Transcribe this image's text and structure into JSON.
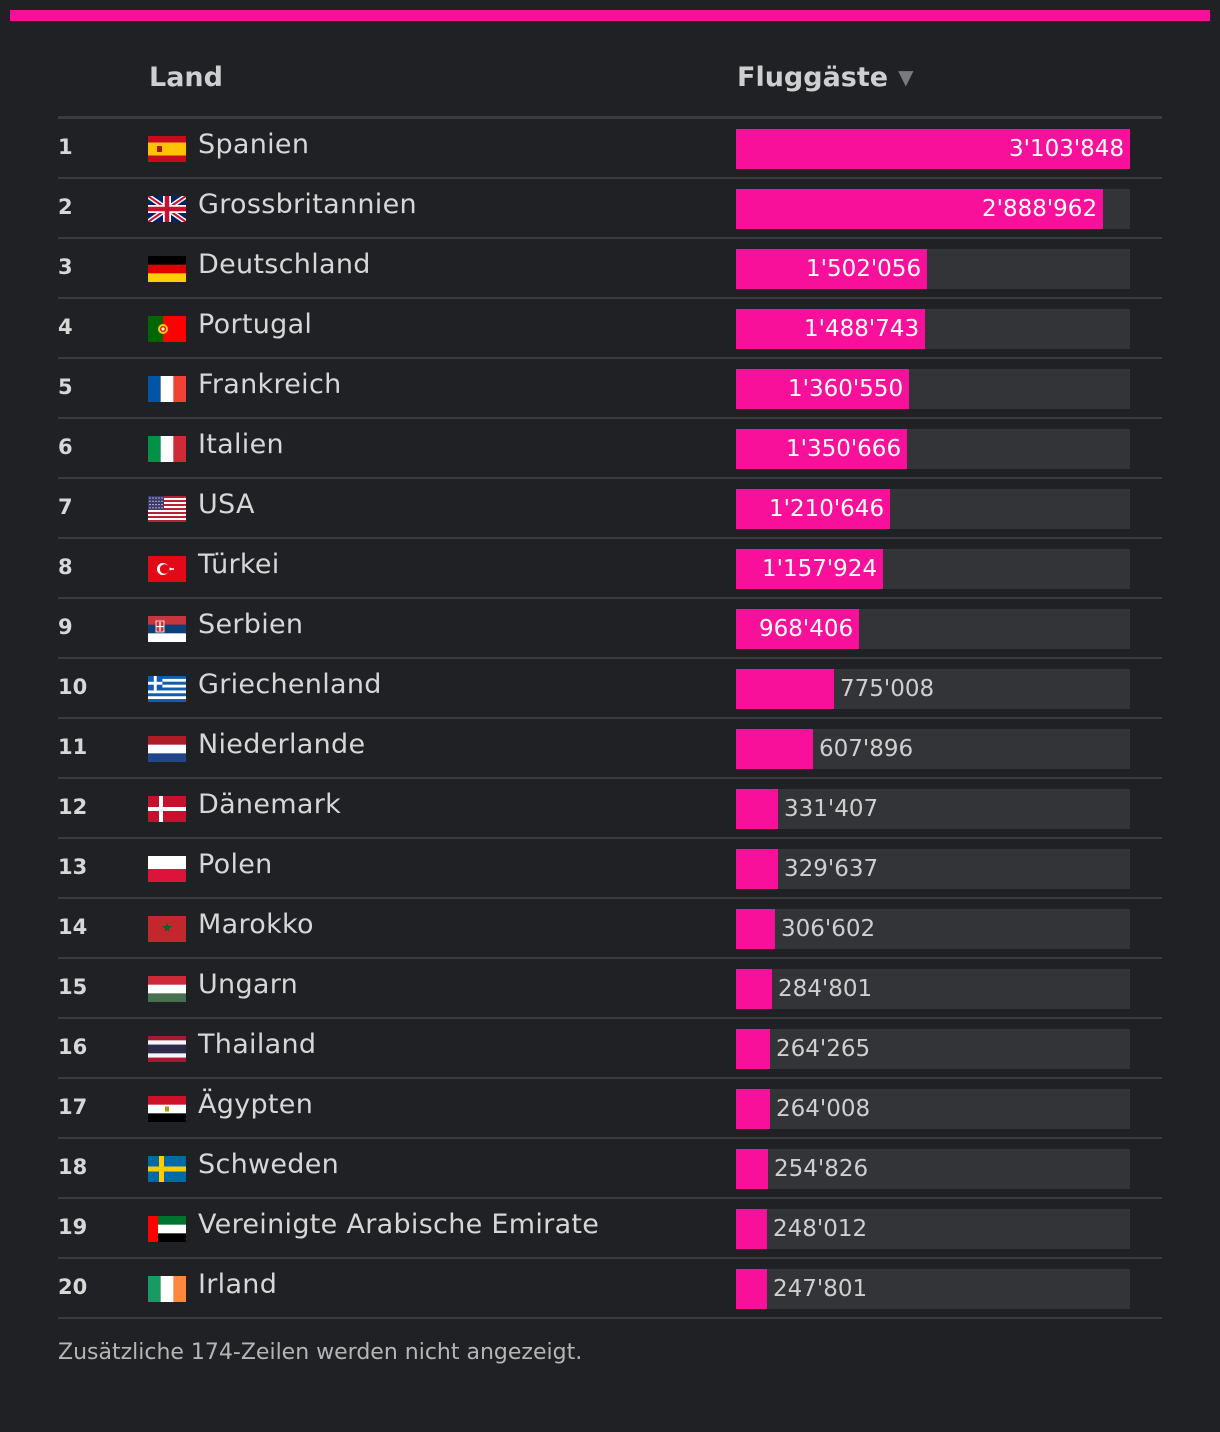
{
  "accent_color": "#f80f9a",
  "header": {
    "land_label": "Land",
    "value_label": "Fluggäste",
    "sort_icon": "triangle-down-icon",
    "sort_glyph": "▼"
  },
  "chart_data": {
    "type": "bar",
    "orientation": "horizontal",
    "xlim": [
      0,
      3103848
    ],
    "columns": [
      "Land",
      "Fluggäste"
    ],
    "rows": [
      {
        "rank": "1",
        "country": "Spanien",
        "flag": "es",
        "value": 3103848,
        "label": "3'103'848"
      },
      {
        "rank": "2",
        "country": "Grossbritannien",
        "flag": "gb",
        "value": 2888962,
        "label": "2'888'962"
      },
      {
        "rank": "3",
        "country": "Deutschland",
        "flag": "de",
        "value": 1502056,
        "label": "1'502'056"
      },
      {
        "rank": "4",
        "country": "Portugal",
        "flag": "pt",
        "value": 1488743,
        "label": "1'488'743"
      },
      {
        "rank": "5",
        "country": "Frankreich",
        "flag": "fr",
        "value": 1360550,
        "label": "1'360'550"
      },
      {
        "rank": "6",
        "country": "Italien",
        "flag": "it",
        "value": 1350666,
        "label": "1'350'666"
      },
      {
        "rank": "7",
        "country": "USA",
        "flag": "us",
        "value": 1210646,
        "label": "1'210'646"
      },
      {
        "rank": "8",
        "country": "Türkei",
        "flag": "tr",
        "value": 1157924,
        "label": "1'157'924"
      },
      {
        "rank": "9",
        "country": "Serbien",
        "flag": "rs",
        "value": 968406,
        "label": "968'406"
      },
      {
        "rank": "10",
        "country": "Griechenland",
        "flag": "gr",
        "value": 775008,
        "label": "775'008"
      },
      {
        "rank": "11",
        "country": "Niederlande",
        "flag": "nl",
        "value": 607896,
        "label": "607'896"
      },
      {
        "rank": "12",
        "country": "Dänemark",
        "flag": "dk",
        "value": 331407,
        "label": "331'407"
      },
      {
        "rank": "13",
        "country": "Polen",
        "flag": "pl",
        "value": 329637,
        "label": "329'637"
      },
      {
        "rank": "14",
        "country": "Marokko",
        "flag": "ma",
        "value": 306602,
        "label": "306'602"
      },
      {
        "rank": "15",
        "country": "Ungarn",
        "flag": "hu",
        "value": 284801,
        "label": "284'801"
      },
      {
        "rank": "16",
        "country": "Thailand",
        "flag": "th",
        "value": 264265,
        "label": "264'265"
      },
      {
        "rank": "17",
        "country": "Ägypten",
        "flag": "eg",
        "value": 264008,
        "label": "264'008"
      },
      {
        "rank": "18",
        "country": "Schweden",
        "flag": "se",
        "value": 254826,
        "label": "254'826"
      },
      {
        "rank": "19",
        "country": "Vereinigte Arabische Emirate",
        "flag": "ae",
        "value": 248012,
        "label": "248'012"
      },
      {
        "rank": "20",
        "country": "Irland",
        "flag": "ie",
        "value": 247801,
        "label": "247'801"
      }
    ]
  },
  "footer": {
    "note": "Zusätzliche 174-Zeilen werden nicht angezeigt."
  }
}
